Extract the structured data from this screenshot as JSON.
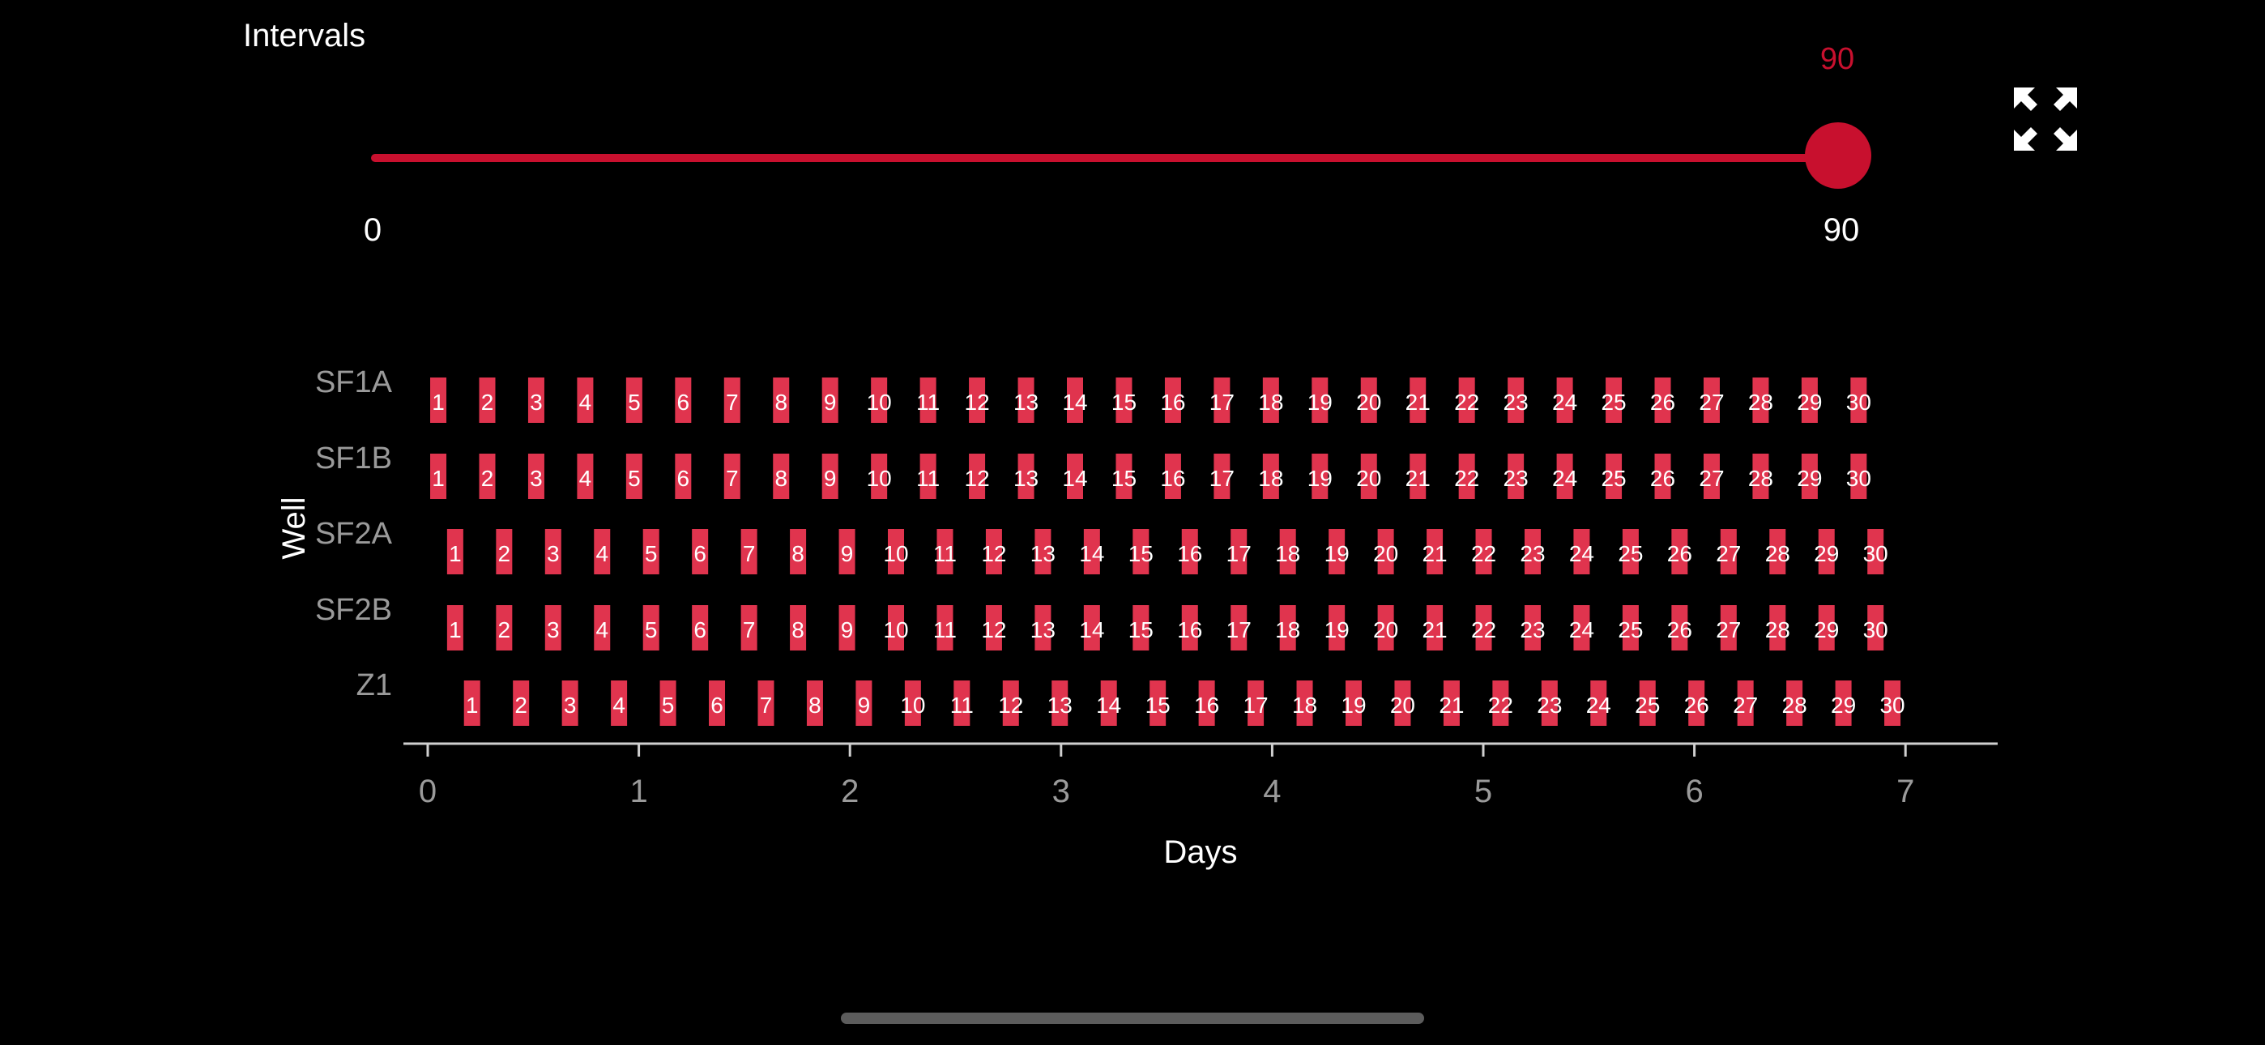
{
  "header": {
    "title": "Intervals"
  },
  "slider": {
    "min_label": "0",
    "max_label": "90",
    "current_label": "90",
    "value": 90,
    "min": 0,
    "max": 90
  },
  "icons": {
    "fullscreen": "expand-arrows-icon"
  },
  "colors": {
    "accent": "#c8102e",
    "bar": "#e0344e",
    "axis": "#cfcfcf",
    "muted": "#9a9a9a",
    "background": "#000000"
  },
  "chart_data": {
    "type": "bar",
    "xlabel": "Days",
    "ylabel": "Well",
    "xlim": [
      -0.1,
      7.45
    ],
    "xticks": [
      0,
      1,
      2,
      3,
      4,
      5,
      6,
      7
    ],
    "categories": [
      "SF1A",
      "SF1B",
      "SF2A",
      "SF2B",
      "Z1"
    ],
    "series": [
      {
        "well": "SF1A",
        "start": 0.05,
        "step": 0.232,
        "labels": [
          "1",
          "2",
          "3",
          "4",
          "5",
          "6",
          "7",
          "8",
          "9",
          "10",
          "11",
          "12",
          "13",
          "14",
          "15",
          "16",
          "17",
          "18",
          "19",
          "20",
          "21",
          "22",
          "23",
          "24",
          "25",
          "26",
          "27",
          "28",
          "29",
          "30"
        ]
      },
      {
        "well": "SF1B",
        "start": 0.05,
        "step": 0.232,
        "labels": [
          "1",
          "2",
          "3",
          "4",
          "5",
          "6",
          "7",
          "8",
          "9",
          "10",
          "11",
          "12",
          "13",
          "14",
          "15",
          "16",
          "17",
          "18",
          "19",
          "20",
          "21",
          "22",
          "23",
          "24",
          "25",
          "26",
          "27",
          "28",
          "29",
          "30"
        ]
      },
      {
        "well": "SF2A",
        "start": 0.13,
        "step": 0.232,
        "labels": [
          "1",
          "2",
          "3",
          "4",
          "5",
          "6",
          "7",
          "8",
          "9",
          "10",
          "11",
          "12",
          "13",
          "14",
          "15",
          "16",
          "17",
          "18",
          "19",
          "20",
          "21",
          "22",
          "23",
          "24",
          "25",
          "26",
          "27",
          "28",
          "29",
          "30"
        ]
      },
      {
        "well": "SF2B",
        "start": 0.13,
        "step": 0.232,
        "labels": [
          "1",
          "2",
          "3",
          "4",
          "5",
          "6",
          "7",
          "8",
          "9",
          "10",
          "11",
          "12",
          "13",
          "14",
          "15",
          "16",
          "17",
          "18",
          "19",
          "20",
          "21",
          "22",
          "23",
          "24",
          "25",
          "26",
          "27",
          "28",
          "29",
          "30"
        ]
      },
      {
        "well": "Z1",
        "start": 0.21,
        "step": 0.232,
        "labels": [
          "1",
          "2",
          "3",
          "4",
          "5",
          "6",
          "7",
          "8",
          "9",
          "10",
          "11",
          "12",
          "13",
          "14",
          "15",
          "16",
          "17",
          "18",
          "19",
          "20",
          "21",
          "22",
          "23",
          "24",
          "25",
          "26",
          "27",
          "28",
          "29",
          "30"
        ]
      }
    ]
  }
}
